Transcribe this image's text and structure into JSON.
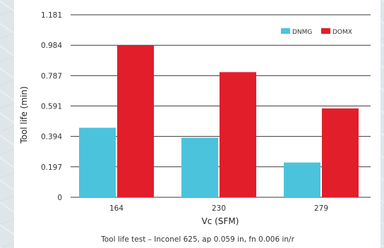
{
  "chart_data": {
    "type": "bar",
    "xlabel": "Vc (SFM)",
    "ylabel": "Tool life (min)",
    "caption": "Tool life test – Inconel 625, ap 0.059 in, fn 0.006 in/r",
    "categories": [
      "164",
      "230",
      "279"
    ],
    "yticks": [
      "0",
      "0.197",
      "0.394",
      "0.591",
      "0.787",
      "0.984",
      "1.181"
    ],
    "ylim": [
      0,
      1.181
    ],
    "grid": true,
    "legend_position": "top-right",
    "series": [
      {
        "name": "DNMG",
        "color": "#4cc3dd",
        "values": [
          0.45,
          0.385,
          0.225
        ]
      },
      {
        "name": "DOMX",
        "color": "#e21e2b",
        "values": [
          0.984,
          0.81,
          0.575
        ]
      }
    ]
  }
}
